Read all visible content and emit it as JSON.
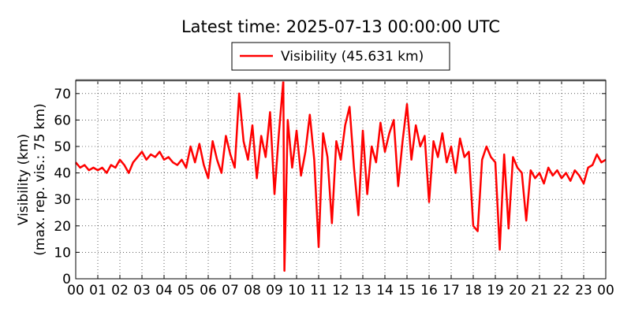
{
  "chart_data": {
    "type": "line",
    "title": "Latest time: 2025-07-13 00:00:00 UTC",
    "ylabel": [
      "Visibility (km)",
      "(max. rep. vis.: 75 km)"
    ],
    "x": [
      0,
      0.2,
      0.4,
      0.6,
      0.8,
      1,
      1.2,
      1.4,
      1.6,
      1.8,
      2,
      2.2,
      2.4,
      2.6,
      2.8,
      3,
      3.2,
      3.4,
      3.6,
      3.8,
      4,
      4.2,
      4.4,
      4.6,
      4.8,
      5,
      5.2,
      5.4,
      5.6,
      5.8,
      6,
      6.2,
      6.4,
      6.6,
      6.8,
      7,
      7.2,
      7.4,
      7.6,
      7.8,
      8,
      8.2,
      8.4,
      8.6,
      8.8,
      9,
      9.2,
      9.4,
      9.45,
      9.6,
      9.8,
      10,
      10.2,
      10.4,
      10.6,
      10.8,
      11,
      11.2,
      11.4,
      11.6,
      11.8,
      12,
      12.2,
      12.4,
      12.6,
      12.8,
      13,
      13.2,
      13.4,
      13.6,
      13.8,
      14,
      14.2,
      14.4,
      14.6,
      14.8,
      15,
      15.2,
      15.4,
      15.6,
      15.8,
      16,
      16.2,
      16.4,
      16.6,
      16.8,
      17,
      17.2,
      17.4,
      17.6,
      17.8,
      18,
      18.2,
      18.4,
      18.6,
      18.8,
      19,
      19.2,
      19.4,
      19.6,
      19.8,
      20,
      20.2,
      20.4,
      20.6,
      20.8,
      21,
      21.2,
      21.4,
      21.6,
      21.8,
      22,
      22.2,
      22.4,
      22.6,
      22.8,
      23,
      23.2,
      23.4,
      23.6,
      23.8,
      24
    ],
    "series": [
      {
        "name": "Visibility (45.631 km)",
        "color": "#ff0000",
        "values": [
          44,
          42,
          43,
          41,
          42,
          41,
          42,
          40,
          43,
          42,
          45,
          43,
          40,
          44,
          46,
          48,
          45,
          47,
          46,
          48,
          45,
          46,
          44,
          43,
          45,
          42,
          50,
          44,
          51,
          43,
          38,
          52,
          45,
          40,
          54,
          47,
          42,
          70,
          52,
          45,
          58,
          38,
          54,
          46,
          63,
          32,
          55,
          75,
          3,
          60,
          42,
          56,
          39,
          48,
          62,
          45,
          12,
          55,
          46,
          21,
          52,
          45,
          58,
          65,
          42,
          24,
          56,
          32,
          50,
          44,
          59,
          48,
          55,
          60,
          35,
          52,
          66,
          45,
          58,
          50,
          54,
          29,
          52,
          46,
          55,
          44,
          50,
          40,
          53,
          46,
          48,
          20,
          18,
          45,
          50,
          46,
          44,
          11,
          47,
          19,
          46,
          42,
          40,
          22,
          41,
          38,
          40,
          36,
          42,
          39,
          41,
          38,
          40,
          37,
          41,
          39,
          36,
          42,
          43,
          47,
          44,
          45
        ]
      }
    ],
    "xlim": [
      0,
      24
    ],
    "xticks": [
      {
        "value": 0,
        "label": "00"
      },
      {
        "value": 1,
        "label": "01"
      },
      {
        "value": 2,
        "label": "02"
      },
      {
        "value": 3,
        "label": "03"
      },
      {
        "value": 4,
        "label": "04"
      },
      {
        "value": 5,
        "label": "05"
      },
      {
        "value": 6,
        "label": "06"
      },
      {
        "value": 7,
        "label": "07"
      },
      {
        "value": 8,
        "label": "08"
      },
      {
        "value": 9,
        "label": "09"
      },
      {
        "value": 10,
        "label": "10"
      },
      {
        "value": 11,
        "label": "11"
      },
      {
        "value": 12,
        "label": "12"
      },
      {
        "value": 13,
        "label": "13"
      },
      {
        "value": 14,
        "label": "14"
      },
      {
        "value": 15,
        "label": "15"
      },
      {
        "value": 16,
        "label": "16"
      },
      {
        "value": 17,
        "label": "17"
      },
      {
        "value": 18,
        "label": "18"
      },
      {
        "value": 19,
        "label": "19"
      },
      {
        "value": 20,
        "label": "20"
      },
      {
        "value": 21,
        "label": "21"
      },
      {
        "value": 22,
        "label": "22"
      },
      {
        "value": 23,
        "label": "23"
      },
      {
        "value": 24,
        "label": "00"
      }
    ],
    "ylim": [
      0,
      75
    ],
    "yticks": [
      0,
      10,
      20,
      30,
      40,
      50,
      60,
      70
    ],
    "grid": true
  }
}
